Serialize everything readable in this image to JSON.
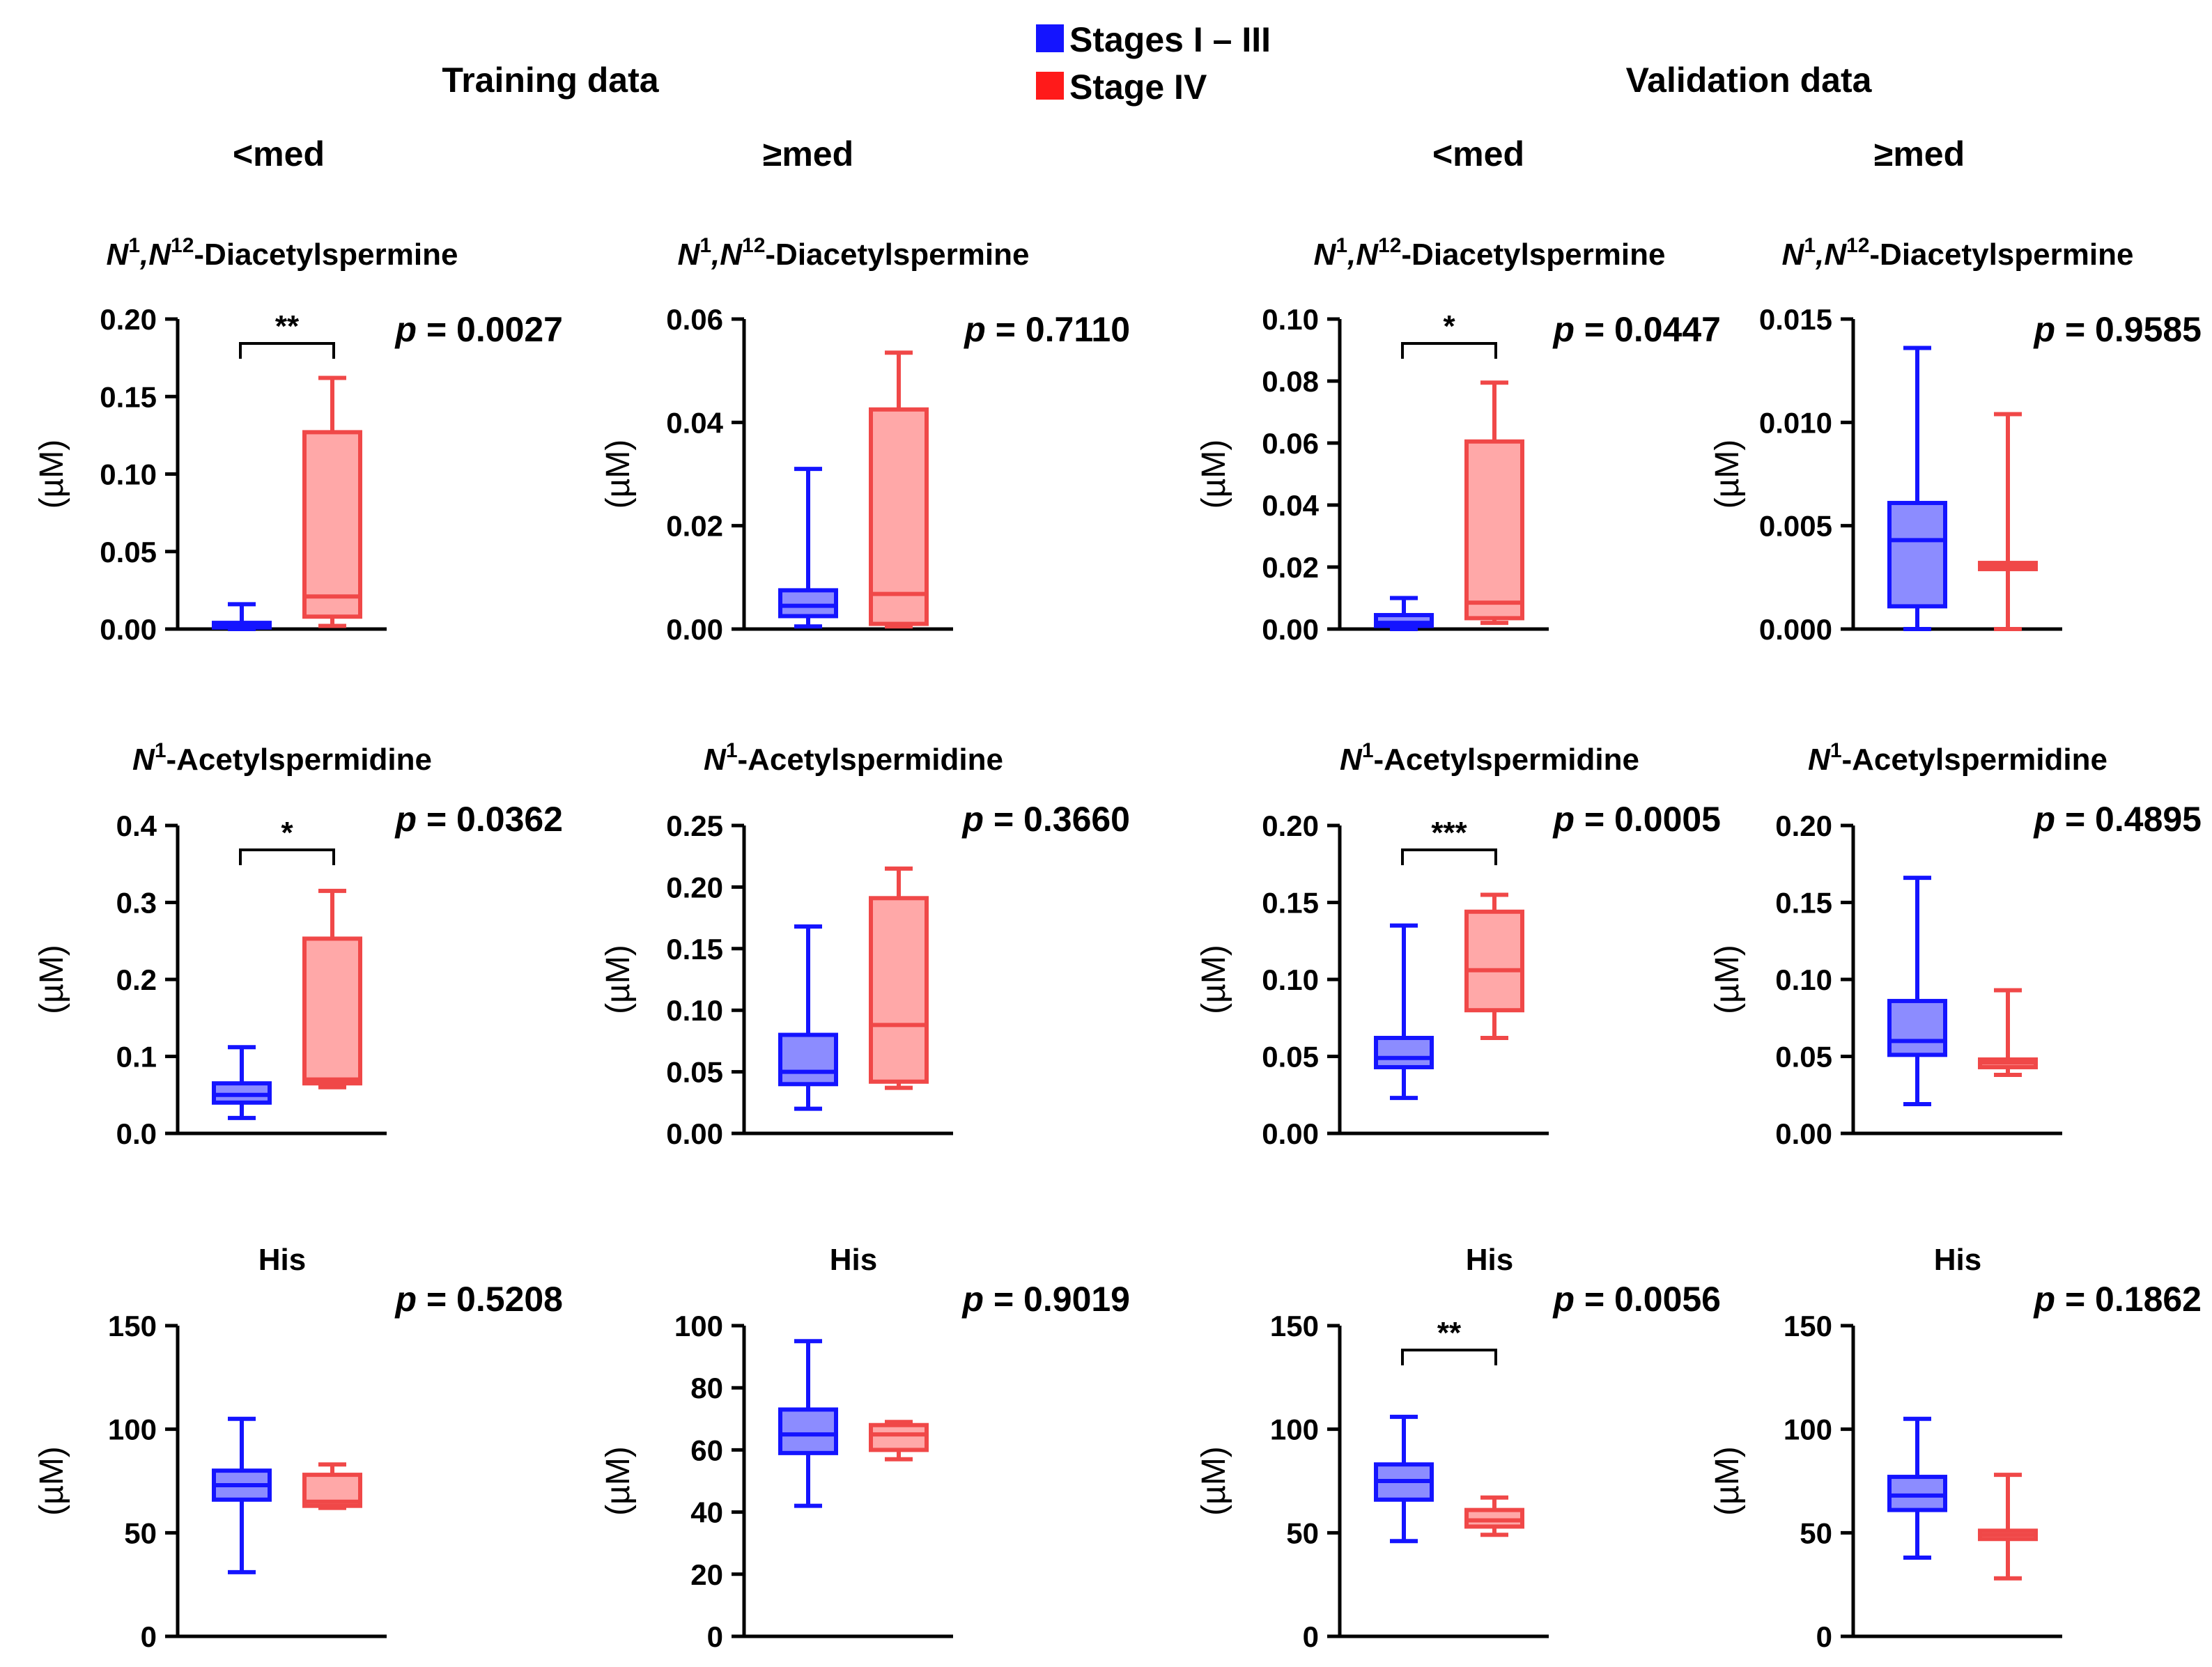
{
  "legend": [
    {
      "label": "Stages I – III",
      "color": "#1414ff"
    },
    {
      "label": "Stage IV",
      "color": "#ff1a1a"
    }
  ],
  "colors": {
    "blue_stroke": "#1414ff",
    "blue_fill": "#8c8cff",
    "red_stroke": "#f04848",
    "red_fill": "#ffa8a8"
  },
  "headers": {
    "training": "Training data",
    "validation": "Validation data",
    "col_labels": [
      "<med",
      "≥med",
      "<med",
      "≥med"
    ]
  },
  "y_label": "(µM)",
  "chart_data": [
    {
      "type": "box",
      "title_main": "N",
      "title_sup1": "1",
      "title_mid": ",N",
      "title_sup2": "12",
      "title_rest": "-Diacetylspermine",
      "p_label": "p",
      "p_value": "= 0.0027",
      "ylim": [
        0,
        0.2
      ],
      "yticks": [
        "0.00",
        "0.05",
        "0.10",
        "0.15",
        "0.20"
      ],
      "sig": "**",
      "series": [
        {
          "name": "Stages I – III",
          "min": 0.0,
          "q1": 0.001,
          "median": 0.002,
          "q3": 0.004,
          "max": 0.016
        },
        {
          "name": "Stage IV",
          "min": 0.002,
          "q1": 0.008,
          "median": 0.021,
          "q3": 0.127,
          "max": 0.162
        }
      ]
    },
    {
      "type": "box",
      "title_main": "N",
      "title_sup1": "1",
      "title_mid": ",N",
      "title_sup2": "12",
      "title_rest": "-Diacetylspermine",
      "p_label": "p",
      "p_value": "= 0.7110",
      "ylim": [
        0,
        0.06
      ],
      "yticks": [
        "0.00",
        "0.02",
        "0.04",
        "0.06"
      ],
      "sig": "",
      "series": [
        {
          "name": "Stages I – III",
          "min": 0.0005,
          "q1": 0.0025,
          "median": 0.0045,
          "q3": 0.0075,
          "max": 0.031
        },
        {
          "name": "Stage IV",
          "min": 0.0005,
          "q1": 0.001,
          "median": 0.0068,
          "q3": 0.0425,
          "max": 0.0535
        }
      ]
    },
    {
      "type": "box",
      "title_main": "N",
      "title_sup1": "1",
      "title_mid": ",N",
      "title_sup2": "12",
      "title_rest": "-Diacetylspermine",
      "p_label": "p",
      "p_value": "= 0.0447",
      "ylim": [
        0,
        0.1
      ],
      "yticks": [
        "0.00",
        "0.02",
        "0.04",
        "0.06",
        "0.08",
        "0.10"
      ],
      "sig": "*",
      "series": [
        {
          "name": "Stages I – III",
          "min": 0.0,
          "q1": 0.001,
          "median": 0.002,
          "q3": 0.0045,
          "max": 0.01
        },
        {
          "name": "Stage IV",
          "min": 0.002,
          "q1": 0.0035,
          "median": 0.0085,
          "q3": 0.0605,
          "max": 0.0795
        }
      ]
    },
    {
      "type": "box",
      "title_main": "N",
      "title_sup1": "1",
      "title_mid": ",N",
      "title_sup2": "12",
      "title_rest": "-Diacetylspermine",
      "p_label": "p",
      "p_value": "= 0.9585",
      "ylim": [
        0,
        0.015
      ],
      "yticks": [
        "0.000",
        "0.005",
        "0.010",
        "0.015"
      ],
      "sig": "",
      "series": [
        {
          "name": "Stages I – III",
          "min": 0.0,
          "q1": 0.0011,
          "median": 0.0043,
          "q3": 0.0061,
          "max": 0.0136
        },
        {
          "name": "Stage IV",
          "min": 0.0,
          "q1": 0.0029,
          "median": 0.0031,
          "q3": 0.0032,
          "max": 0.0104
        }
      ]
    },
    {
      "type": "box",
      "title_main": "N",
      "title_sup1": "1",
      "title_mid": "",
      "title_sup2": "",
      "title_rest": "-Acetylspermidine",
      "p_label": "p",
      "p_value": "= 0.0362",
      "ylim": [
        0,
        0.4
      ],
      "yticks": [
        "0.0",
        "0.1",
        "0.2",
        "0.3",
        "0.4"
      ],
      "sig": "*",
      "series": [
        {
          "name": "Stages I – III",
          "min": 0.02,
          "q1": 0.04,
          "median": 0.05,
          "q3": 0.065,
          "max": 0.112
        },
        {
          "name": "Stage IV",
          "min": 0.06,
          "q1": 0.065,
          "median": 0.07,
          "q3": 0.253,
          "max": 0.315
        }
      ]
    },
    {
      "type": "box",
      "title_main": "N",
      "title_sup1": "1",
      "title_mid": "",
      "title_sup2": "",
      "title_rest": "-Acetylspermidine",
      "p_label": "p",
      "p_value": "= 0.3660",
      "ylim": [
        0,
        0.25
      ],
      "yticks": [
        "0.00",
        "0.05",
        "0.10",
        "0.15",
        "0.20",
        "0.25"
      ],
      "sig": "",
      "series": [
        {
          "name": "Stages I – III",
          "min": 0.02,
          "q1": 0.04,
          "median": 0.05,
          "q3": 0.08,
          "max": 0.168
        },
        {
          "name": "Stage IV",
          "min": 0.037,
          "q1": 0.042,
          "median": 0.088,
          "q3": 0.191,
          "max": 0.215
        }
      ]
    },
    {
      "type": "box",
      "title_main": "N",
      "title_sup1": "1",
      "title_mid": "",
      "title_sup2": "",
      "title_rest": "-Acetylspermidine",
      "p_label": "p",
      "p_value": "= 0.0005",
      "ylim": [
        0,
        0.2
      ],
      "yticks": [
        "0.00",
        "0.05",
        "0.10",
        "0.15",
        "0.20"
      ],
      "sig": "***",
      "series": [
        {
          "name": "Stages I – III",
          "min": 0.023,
          "q1": 0.043,
          "median": 0.049,
          "q3": 0.062,
          "max": 0.135
        },
        {
          "name": "Stage IV",
          "min": 0.062,
          "q1": 0.08,
          "median": 0.106,
          "q3": 0.144,
          "max": 0.155
        }
      ]
    },
    {
      "type": "box",
      "title_main": "N",
      "title_sup1": "1",
      "title_mid": "",
      "title_sup2": "",
      "title_rest": "-Acetylspermidine",
      "p_label": "p",
      "p_value": "= 0.4895",
      "ylim": [
        0,
        0.2
      ],
      "yticks": [
        "0.00",
        "0.05",
        "0.10",
        "0.15",
        "0.20"
      ],
      "sig": "",
      "series": [
        {
          "name": "Stages I – III",
          "min": 0.019,
          "q1": 0.051,
          "median": 0.06,
          "q3": 0.086,
          "max": 0.166
        },
        {
          "name": "Stage IV",
          "min": 0.038,
          "q1": 0.043,
          "median": 0.046,
          "q3": 0.048,
          "max": 0.093
        }
      ]
    },
    {
      "type": "box",
      "title_main": "His",
      "title_sup1": "",
      "title_mid": "",
      "title_sup2": "",
      "title_rest": "",
      "p_label": "p",
      "p_value": "= 0.5208",
      "ylim": [
        0,
        150
      ],
      "yticks": [
        "0",
        "50",
        "100",
        "150"
      ],
      "sig": "",
      "series": [
        {
          "name": "Stages I – III",
          "min": 31,
          "q1": 66,
          "median": 73,
          "q3": 80,
          "max": 105
        },
        {
          "name": "Stage IV",
          "min": 62,
          "q1": 63,
          "median": 65,
          "q3": 78,
          "max": 83
        }
      ]
    },
    {
      "type": "box",
      "title_main": "His",
      "title_sup1": "",
      "title_mid": "",
      "title_sup2": "",
      "title_rest": "",
      "p_label": "p",
      "p_value": "= 0.9019",
      "ylim": [
        0,
        100
      ],
      "yticks": [
        "0",
        "20",
        "40",
        "60",
        "80",
        "100"
      ],
      "sig": "",
      "series": [
        {
          "name": "Stages I – III",
          "min": 42,
          "q1": 59,
          "median": 65,
          "q3": 73,
          "max": 95
        },
        {
          "name": "Stage IV",
          "min": 57,
          "q1": 60,
          "median": 65,
          "q3": 68,
          "max": 69
        }
      ]
    },
    {
      "type": "box",
      "title_main": "His",
      "title_sup1": "",
      "title_mid": "",
      "title_sup2": "",
      "title_rest": "",
      "p_label": "p",
      "p_value": "= 0.0056",
      "ylim": [
        0,
        150
      ],
      "yticks": [
        "0",
        "50",
        "100",
        "150"
      ],
      "sig": "**",
      "series": [
        {
          "name": "Stages I – III",
          "min": 46,
          "q1": 66,
          "median": 75,
          "q3": 83,
          "max": 106
        },
        {
          "name": "Stage IV",
          "min": 49,
          "q1": 53,
          "median": 56,
          "q3": 61,
          "max": 67
        }
      ]
    },
    {
      "type": "box",
      "title_main": "His",
      "title_sup1": "",
      "title_mid": "",
      "title_sup2": "",
      "title_rest": "",
      "p_label": "p",
      "p_value": "= 0.1862",
      "ylim": [
        0,
        150
      ],
      "yticks": [
        "0",
        "50",
        "100",
        "150"
      ],
      "sig": "",
      "series": [
        {
          "name": "Stages I – III",
          "min": 38,
          "q1": 61,
          "median": 68,
          "q3": 77,
          "max": 105
        },
        {
          "name": "Stage IV",
          "min": 28,
          "q1": 47,
          "median": 49,
          "q3": 51,
          "max": 78
        }
      ]
    }
  ]
}
